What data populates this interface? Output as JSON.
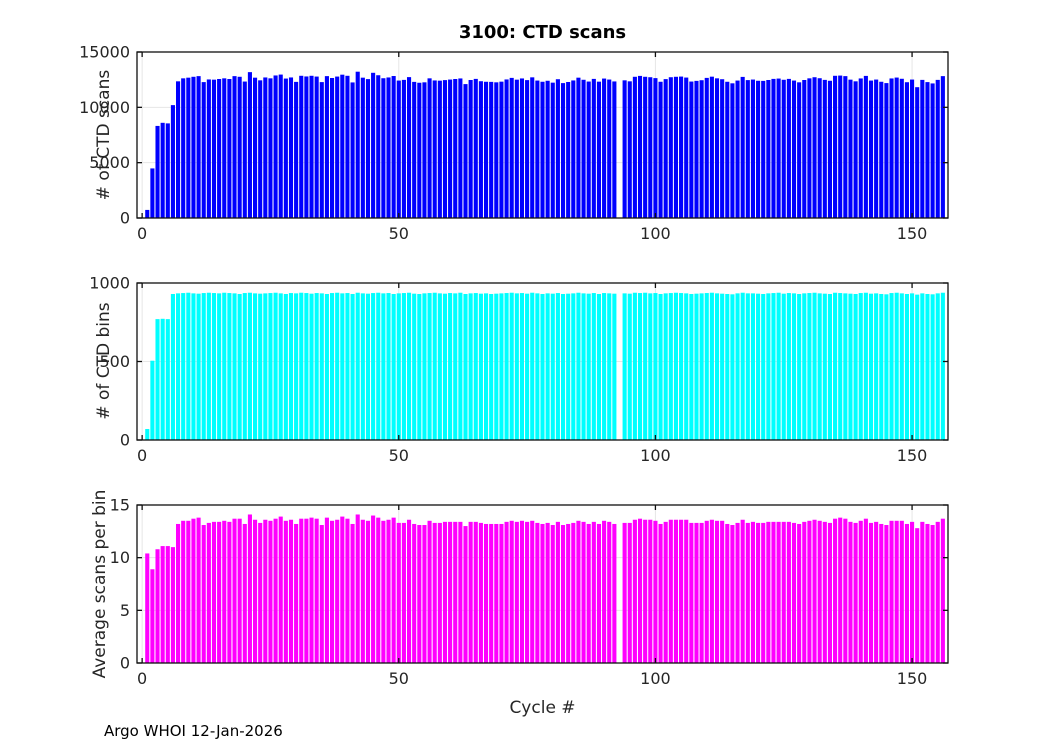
{
  "page": {
    "footer": "Argo WHOI 12-Jan-2026"
  },
  "chart_data": [
    {
      "type": "bar",
      "title": "3100: CTD scans",
      "ylabel": "# of CTD scans",
      "bar_color": "#0000ff",
      "grid": true,
      "ylim": [
        0,
        15000
      ],
      "yticks": [
        0,
        5000,
        10000,
        15000
      ],
      "xlim": [
        -1,
        157
      ],
      "xticks": [
        0,
        50,
        100,
        150
      ],
      "x_start": 1,
      "missing_cycle": 93,
      "values": [
        730,
        4480,
        8320,
        8600,
        8550,
        10200,
        12350,
        12620,
        12680,
        12760,
        12820,
        12280,
        12520,
        12500,
        12560,
        12620,
        12560,
        12820,
        12760,
        12330,
        13180,
        12680,
        12440,
        12700,
        12620,
        12880,
        12960,
        12600,
        12700,
        12300,
        12850,
        12790,
        12850,
        12780,
        12280,
        12820,
        12650,
        12780,
        12950,
        12850,
        12250,
        13220,
        12680,
        12550,
        13120,
        12900,
        12630,
        12700,
        12830,
        12420,
        12480,
        12730,
        12300,
        12220,
        12260,
        12620,
        12430,
        12410,
        12460,
        12510,
        12560,
        12610,
        12100,
        12470,
        12570,
        12360,
        12310,
        12300,
        12260,
        12320,
        12520,
        12660,
        12500,
        12610,
        12460,
        12710,
        12420,
        12310,
        12400,
        12230,
        12540,
        12190,
        12290,
        12430,
        12680,
        12490,
        12330,
        12570,
        12320,
        12600,
        12510,
        12340,
        0,
        12440,
        12350,
        12760,
        12840,
        12760,
        12720,
        12640,
        12310,
        12550,
        12720,
        12760,
        12780,
        12690,
        12330,
        12390,
        12450,
        12660,
        12770,
        12620,
        12540,
        12310,
        12170,
        12420,
        12750,
        12460,
        12510,
        12400,
        12390,
        12470,
        12570,
        12600,
        12490,
        12570,
        12420,
        12260,
        12470,
        12620,
        12720,
        12630,
        12480,
        12400,
        12850,
        12870,
        12820,
        12500,
        12350,
        12610,
        12840,
        12420,
        12510,
        12310,
        12190,
        12610,
        12690,
        12580,
        12270,
        12510,
        11820,
        12480,
        12280,
        12160,
        12480,
        12820
      ]
    },
    {
      "type": "bar",
      "title": "",
      "ylabel": "# of CTD bins",
      "bar_color": "#00ffff",
      "grid": true,
      "ylim": [
        0,
        1000
      ],
      "yticks": [
        0,
        500,
        1000
      ],
      "xlim": [
        -1,
        157
      ],
      "xticks": [
        0,
        50,
        100,
        150
      ],
      "x_start": 1,
      "missing_cycle": 93,
      "values": [
        70,
        505,
        770,
        772,
        770,
        930,
        934,
        936,
        938,
        934,
        932,
        936,
        938,
        936,
        934,
        938,
        936,
        934,
        930,
        936,
        938,
        934,
        932,
        934,
        936,
        938,
        934,
        930,
        936,
        934,
        938,
        936,
        932,
        936,
        934,
        930,
        936,
        938,
        934,
        936,
        930,
        938,
        934,
        932,
        936,
        938,
        934,
        936,
        930,
        934,
        936,
        938,
        932,
        930,
        934,
        936,
        938,
        934,
        932,
        936,
        934,
        938,
        930,
        934,
        936,
        932,
        934,
        930,
        932,
        934,
        936,
        938,
        934,
        936,
        932,
        938,
        934,
        930,
        934,
        932,
        936,
        930,
        932,
        934,
        938,
        934,
        932,
        936,
        930,
        936,
        934,
        932,
        0,
        934,
        932,
        938,
        936,
        938,
        934,
        936,
        930,
        934,
        936,
        938,
        936,
        934,
        930,
        932,
        934,
        936,
        938,
        934,
        932,
        930,
        928,
        934,
        938,
        934,
        934,
        932,
        930,
        934,
        936,
        938,
        932,
        936,
        934,
        930,
        934,
        936,
        938,
        934,
        932,
        930,
        938,
        936,
        934,
        932,
        930,
        936,
        938,
        932,
        934,
        930,
        928,
        936,
        938,
        934,
        930,
        934,
        926,
        934,
        930,
        928,
        934,
        938
      ]
    },
    {
      "type": "bar",
      "title": "",
      "ylabel": "Average scans per bin",
      "xlabel": "Cycle #",
      "bar_color": "#ff00ff",
      "grid": true,
      "ylim": [
        0,
        15
      ],
      "yticks": [
        0,
        5,
        10,
        15
      ],
      "xlim": [
        -1,
        157
      ],
      "xticks": [
        0,
        50,
        100,
        150
      ],
      "x_start": 1,
      "missing_cycle": 93,
      "values": [
        10.4,
        8.9,
        10.8,
        11.1,
        11.1,
        11.0,
        13.2,
        13.5,
        13.5,
        13.7,
        13.8,
        13.1,
        13.3,
        13.4,
        13.4,
        13.5,
        13.4,
        13.7,
        13.7,
        13.2,
        14.1,
        13.6,
        13.3,
        13.6,
        13.5,
        13.7,
        13.9,
        13.5,
        13.6,
        13.2,
        13.7,
        13.7,
        13.8,
        13.7,
        13.1,
        13.8,
        13.5,
        13.6,
        13.9,
        13.7,
        13.2,
        14.1,
        13.6,
        13.5,
        14.0,
        13.8,
        13.5,
        13.6,
        13.8,
        13.3,
        13.3,
        13.6,
        13.2,
        13.1,
        13.1,
        13.5,
        13.3,
        13.3,
        13.4,
        13.4,
        13.4,
        13.4,
        13.0,
        13.4,
        13.4,
        13.3,
        13.2,
        13.2,
        13.2,
        13.2,
        13.4,
        13.5,
        13.4,
        13.5,
        13.4,
        13.5,
        13.3,
        13.2,
        13.3,
        13.1,
        13.4,
        13.1,
        13.2,
        13.3,
        13.5,
        13.4,
        13.2,
        13.4,
        13.2,
        13.5,
        13.4,
        13.2,
        0,
        13.3,
        13.3,
        13.6,
        13.7,
        13.6,
        13.6,
        13.5,
        13.2,
        13.4,
        13.6,
        13.6,
        13.6,
        13.6,
        13.3,
        13.3,
        13.3,
        13.5,
        13.6,
        13.5,
        13.5,
        13.2,
        13.1,
        13.3,
        13.6,
        13.3,
        13.4,
        13.3,
        13.3,
        13.4,
        13.4,
        13.4,
        13.4,
        13.4,
        13.3,
        13.2,
        13.4,
        13.5,
        13.6,
        13.5,
        13.4,
        13.3,
        13.7,
        13.8,
        13.7,
        13.4,
        13.3,
        13.5,
        13.7,
        13.3,
        13.4,
        13.2,
        13.1,
        13.5,
        13.5,
        13.5,
        13.2,
        13.4,
        12.8,
        13.4,
        13.2,
        13.1,
        13.4,
        13.7
      ]
    }
  ]
}
